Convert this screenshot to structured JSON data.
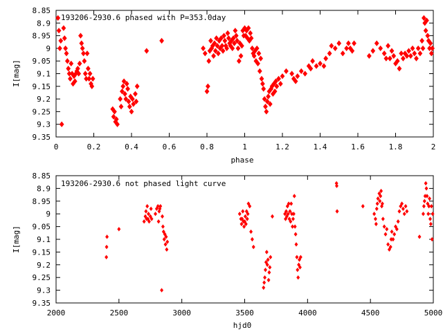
{
  "chart_data": [
    {
      "type": "scatter",
      "title": "193206-2930.6 phased with P=353.0day",
      "xlabel": "phase",
      "ylabel": "I[mag]",
      "xlim": [
        0,
        2
      ],
      "ylim": [
        8.85,
        9.35
      ],
      "y_inverted": true,
      "grid": false,
      "marker_color": "#ff0000",
      "xticks": [
        "0",
        "0.2",
        "0.4",
        "0.6",
        "0.8",
        "1",
        "1.2",
        "1.4",
        "1.6",
        "1.8",
        "2"
      ],
      "yticks": [
        "8.85",
        "8.9",
        "8.95",
        "9",
        "9.05",
        "9.1",
        "9.15",
        "9.2",
        "9.25",
        "9.3",
        "9.35"
      ],
      "points": [
        [
          0.01,
          8.88
        ],
        [
          0.015,
          8.93
        ],
        [
          0.02,
          9.0
        ],
        [
          0.025,
          8.97
        ],
        [
          0.03,
          9.3
        ],
        [
          0.04,
          8.92
        ],
        [
          0.045,
          8.96
        ],
        [
          0.05,
          9.0
        ],
        [
          0.055,
          9.02
        ],
        [
          0.06,
          9.05
        ],
        [
          0.065,
          9.08
        ],
        [
          0.07,
          9.1
        ],
        [
          0.075,
          9.12
        ],
        [
          0.08,
          9.06
        ],
        [
          0.085,
          9.1
        ],
        [
          0.09,
          9.14
        ],
        [
          0.095,
          9.11
        ],
        [
          0.1,
          9.13
        ],
        [
          0.105,
          9.1
        ],
        [
          0.11,
          9.09
        ],
        [
          0.115,
          9.08
        ],
        [
          0.12,
          9.1
        ],
        [
          0.125,
          9.06
        ],
        [
          0.13,
          8.95
        ],
        [
          0.135,
          8.98
        ],
        [
          0.14,
          9.0
        ],
        [
          0.145,
          9.02
        ],
        [
          0.15,
          9.05
        ],
        [
          0.155,
          9.1
        ],
        [
          0.16,
          9.12
        ],
        [
          0.165,
          9.02
        ],
        [
          0.17,
          9.08
        ],
        [
          0.175,
          9.12
        ],
        [
          0.18,
          9.1
        ],
        [
          0.185,
          9.14
        ],
        [
          0.19,
          9.15
        ],
        [
          0.195,
          9.12
        ],
        [
          0.3,
          9.24
        ],
        [
          0.305,
          9.27
        ],
        [
          0.31,
          9.25
        ],
        [
          0.315,
          9.29
        ],
        [
          0.32,
          9.28
        ],
        [
          0.325,
          9.3
        ],
        [
          0.34,
          9.2
        ],
        [
          0.345,
          9.23
        ],
        [
          0.35,
          9.17
        ],
        [
          0.355,
          9.15
        ],
        [
          0.36,
          9.13
        ],
        [
          0.365,
          9.18
        ],
        [
          0.37,
          9.2
        ],
        [
          0.375,
          9.14
        ],
        [
          0.38,
          9.16
        ],
        [
          0.385,
          9.21
        ],
        [
          0.39,
          9.23
        ],
        [
          0.395,
          9.19
        ],
        [
          0.4,
          9.25
        ],
        [
          0.405,
          9.2
        ],
        [
          0.41,
          9.22
        ],
        [
          0.42,
          9.18
        ],
        [
          0.425,
          9.21
        ],
        [
          0.43,
          9.15
        ],
        [
          0.48,
          9.01
        ],
        [
          0.56,
          8.97
        ],
        [
          0.78,
          9.0
        ],
        [
          0.79,
          9.02
        ],
        [
          0.8,
          9.17
        ],
        [
          0.805,
          9.15
        ],
        [
          0.81,
          9.05
        ],
        [
          0.815,
          9.01
        ],
        [
          0.82,
          8.97
        ],
        [
          0.825,
          9.0
        ],
        [
          0.83,
          8.99
        ],
        [
          0.835,
          9.03
        ],
        [
          0.84,
          8.98
        ],
        [
          0.845,
          9.01
        ],
        [
          0.85,
          8.96
        ],
        [
          0.855,
          8.99
        ],
        [
          0.86,
          9.02
        ],
        [
          0.865,
          8.97
        ],
        [
          0.87,
          9.0
        ],
        [
          0.875,
          8.96
        ],
        [
          0.88,
          8.99
        ],
        [
          0.885,
          9.01
        ],
        [
          0.89,
          8.95
        ],
        [
          0.895,
          8.97
        ],
        [
          0.9,
          8.99
        ],
        [
          0.905,
          9.0
        ],
        [
          0.91,
          8.94
        ],
        [
          0.915,
          8.96
        ],
        [
          0.92,
          8.98
        ],
        [
          0.925,
          8.99
        ],
        [
          0.93,
          8.97
        ],
        [
          0.935,
          9.0
        ],
        [
          0.94,
          8.96
        ],
        [
          0.945,
          8.98
        ],
        [
          0.95,
          8.93
        ],
        [
          0.955,
          8.95
        ],
        [
          0.96,
          8.97
        ],
        [
          0.965,
          9.0
        ],
        [
          0.97,
          9.05
        ],
        [
          0.975,
          8.98
        ],
        [
          0.98,
          9.03
        ],
        [
          0.985,
          8.99
        ],
        [
          0.99,
          8.93
        ],
        [
          0.995,
          8.95
        ],
        [
          1.0,
          8.92
        ],
        [
          1.005,
          8.95
        ],
        [
          1.01,
          8.93
        ],
        [
          1.015,
          8.96
        ],
        [
          1.02,
          8.92
        ],
        [
          1.025,
          8.97
        ],
        [
          1.03,
          8.94
        ],
        [
          1.035,
          8.96
        ],
        [
          1.04,
          9.0
        ],
        [
          1.045,
          9.02
        ],
        [
          1.05,
          9.03
        ],
        [
          1.055,
          9.01
        ],
        [
          1.06,
          9.05
        ],
        [
          1.065,
          9.0
        ],
        [
          1.07,
          9.06
        ],
        [
          1.075,
          9.02
        ],
        [
          1.08,
          9.09
        ],
        [
          1.085,
          9.04
        ],
        [
          1.09,
          9.12
        ],
        [
          1.095,
          9.14
        ],
        [
          1.1,
          9.16
        ],
        [
          1.105,
          9.2
        ],
        [
          1.11,
          9.23
        ],
        [
          1.115,
          9.25
        ],
        [
          1.12,
          9.21
        ],
        [
          1.125,
          9.19
        ],
        [
          1.13,
          9.17
        ],
        [
          1.135,
          9.22
        ],
        [
          1.14,
          9.16
        ],
        [
          1.145,
          9.15
        ],
        [
          1.15,
          9.18
        ],
        [
          1.155,
          9.14
        ],
        [
          1.16,
          9.17
        ],
        [
          1.165,
          9.13
        ],
        [
          1.17,
          9.15
        ],
        [
          1.18,
          9.12
        ],
        [
          1.19,
          9.14
        ],
        [
          1.2,
          9.11
        ],
        [
          1.22,
          9.09
        ],
        [
          1.25,
          9.1
        ],
        [
          1.26,
          9.12
        ],
        [
          1.27,
          9.13
        ],
        [
          1.28,
          9.11
        ],
        [
          1.3,
          9.09
        ],
        [
          1.32,
          9.1
        ],
        [
          1.34,
          9.07
        ],
        [
          1.35,
          9.08
        ],
        [
          1.36,
          9.05
        ],
        [
          1.38,
          9.07
        ],
        [
          1.4,
          9.06
        ],
        [
          1.42,
          9.07
        ],
        [
          1.43,
          9.04
        ],
        [
          1.45,
          9.02
        ],
        [
          1.46,
          8.99
        ],
        [
          1.48,
          9.0
        ],
        [
          1.5,
          8.98
        ],
        [
          1.52,
          9.02
        ],
        [
          1.54,
          9.0
        ],
        [
          1.55,
          8.98
        ],
        [
          1.56,
          9.0
        ],
        [
          1.57,
          9.01
        ],
        [
          1.58,
          8.98
        ],
        [
          1.66,
          9.03
        ],
        [
          1.68,
          9.01
        ],
        [
          1.7,
          8.98
        ],
        [
          1.72,
          9.0
        ],
        [
          1.74,
          9.02
        ],
        [
          1.75,
          9.04
        ],
        [
          1.76,
          8.99
        ],
        [
          1.77,
          9.04
        ],
        [
          1.78,
          9.01
        ],
        [
          1.79,
          9.03
        ],
        [
          1.8,
          9.06
        ],
        [
          1.81,
          9.05
        ],
        [
          1.82,
          9.08
        ],
        [
          1.83,
          9.02
        ],
        [
          1.84,
          9.04
        ],
        [
          1.85,
          9.02
        ],
        [
          1.86,
          9.03
        ],
        [
          1.87,
          9.01
        ],
        [
          1.88,
          9.03
        ],
        [
          1.89,
          9.0
        ],
        [
          1.9,
          9.02
        ],
        [
          1.91,
          9.04
        ],
        [
          1.92,
          9.0
        ],
        [
          1.93,
          9.02
        ],
        [
          1.94,
          8.97
        ],
        [
          1.945,
          9.0
        ],
        [
          1.95,
          8.88
        ],
        [
          1.955,
          8.9
        ],
        [
          1.96,
          8.93
        ],
        [
          1.965,
          8.89
        ],
        [
          1.97,
          8.95
        ],
        [
          1.975,
          8.97
        ],
        [
          1.98,
          9.0
        ],
        [
          1.985,
          8.98
        ],
        [
          1.99,
          9.02
        ],
        [
          1.995,
          9.0
        ]
      ]
    },
    {
      "type": "scatter",
      "title": "193206-2930.6 not phased light curve",
      "xlabel": "hjd0",
      "ylabel": "I[mag]",
      "xlim": [
        2000,
        5000
      ],
      "ylim": [
        8.85,
        9.35
      ],
      "y_inverted": true,
      "grid": false,
      "marker_color": "#ff0000",
      "xticks": [
        "2000",
        "2500",
        "3000",
        "3500",
        "4000",
        "4500",
        "5000"
      ],
      "yticks": [
        "8.85",
        "8.9",
        "8.95",
        "9",
        "9.05",
        "9.1",
        "9.15",
        "9.2",
        "9.25",
        "9.3",
        "9.35"
      ],
      "points": [
        [
          2400,
          9.17
        ],
        [
          2402,
          9.13
        ],
        [
          2405,
          9.09
        ],
        [
          2500,
          9.06
        ],
        [
          2700,
          9.03
        ],
        [
          2710,
          9.01
        ],
        [
          2715,
          8.99
        ],
        [
          2720,
          9.02
        ],
        [
          2725,
          8.97
        ],
        [
          2730,
          9.02
        ],
        [
          2735,
          9.0
        ],
        [
          2740,
          9.03
        ],
        [
          2750,
          9.01
        ],
        [
          2755,
          8.98
        ],
        [
          2760,
          9.02
        ],
        [
          2790,
          9.0
        ],
        [
          2800,
          8.98
        ],
        [
          2810,
          8.97
        ],
        [
          2815,
          9.03
        ],
        [
          2820,
          8.99
        ],
        [
          2825,
          8.98
        ],
        [
          2830,
          8.97
        ],
        [
          2840,
          9.3
        ],
        [
          2845,
          9.01
        ],
        [
          2850,
          9.05
        ],
        [
          2855,
          9.07
        ],
        [
          2860,
          9.1
        ],
        [
          2865,
          9.08
        ],
        [
          2870,
          9.12
        ],
        [
          2875,
          9.09
        ],
        [
          2880,
          9.14
        ],
        [
          2885,
          9.11
        ],
        [
          3460,
          9.0
        ],
        [
          3470,
          9.02
        ],
        [
          3475,
          9.04
        ],
        [
          3480,
          9.02
        ],
        [
          3485,
          8.99
        ],
        [
          3490,
          9.03
        ],
        [
          3495,
          9.05
        ],
        [
          3500,
          9.03
        ],
        [
          3505,
          9.01
        ],
        [
          3510,
          9.04
        ],
        [
          3515,
          8.99
        ],
        [
          3520,
          9.02
        ],
        [
          3525,
          9.0
        ],
        [
          3530,
          8.96
        ],
        [
          3540,
          8.97
        ],
        [
          3550,
          9.07
        ],
        [
          3560,
          9.1
        ],
        [
          3570,
          9.13
        ],
        [
          3650,
          9.29
        ],
        [
          3655,
          9.27
        ],
        [
          3660,
          9.25
        ],
        [
          3665,
          9.22
        ],
        [
          3670,
          9.19
        ],
        [
          3675,
          9.15
        ],
        [
          3680,
          9.2
        ],
        [
          3685,
          9.18
        ],
        [
          3690,
          9.26
        ],
        [
          3695,
          9.23
        ],
        [
          3700,
          9.21
        ],
        [
          3705,
          9.17
        ],
        [
          3720,
          9.01
        ],
        [
          3820,
          9.0
        ],
        [
          3825,
          9.02
        ],
        [
          3830,
          8.99
        ],
        [
          3835,
          9.01
        ],
        [
          3840,
          8.97
        ],
        [
          3845,
          9.0
        ],
        [
          3850,
          8.96
        ],
        [
          3855,
          9.02
        ],
        [
          3860,
          8.99
        ],
        [
          3865,
          9.03
        ],
        [
          3870,
          8.96
        ],
        [
          3875,
          9.0
        ],
        [
          3880,
          9.05
        ],
        [
          3885,
          9.02
        ],
        [
          3890,
          9.0
        ],
        [
          3895,
          8.93
        ],
        [
          3900,
          9.05
        ],
        [
          3905,
          9.08
        ],
        [
          3910,
          9.12
        ],
        [
          3915,
          9.17
        ],
        [
          3920,
          9.22
        ],
        [
          3925,
          9.25
        ],
        [
          3930,
          9.2
        ],
        [
          3935,
          9.18
        ],
        [
          3940,
          9.21
        ],
        [
          3945,
          9.17
        ],
        [
          4230,
          8.88
        ],
        [
          4232,
          8.89
        ],
        [
          4235,
          8.99
        ],
        [
          4440,
          8.97
        ],
        [
          4530,
          9.0
        ],
        [
          4540,
          9.02
        ],
        [
          4545,
          9.04
        ],
        [
          4550,
          8.98
        ],
        [
          4555,
          8.96
        ],
        [
          4560,
          8.94
        ],
        [
          4570,
          8.92
        ],
        [
          4575,
          8.95
        ],
        [
          4580,
          8.93
        ],
        [
          4585,
          8.91
        ],
        [
          4590,
          8.97
        ],
        [
          4595,
          8.96
        ],
        [
          4600,
          9.02
        ],
        [
          4610,
          9.05
        ],
        [
          4620,
          9.08
        ],
        [
          4630,
          9.06
        ],
        [
          4640,
          9.12
        ],
        [
          4650,
          9.14
        ],
        [
          4660,
          9.13
        ],
        [
          4665,
          9.1
        ],
        [
          4670,
          9.07
        ],
        [
          4680,
          9.1
        ],
        [
          4690,
          9.08
        ],
        [
          4700,
          9.05
        ],
        [
          4710,
          9.06
        ],
        [
          4720,
          9.03
        ],
        [
          4730,
          8.99
        ],
        [
          4740,
          8.97
        ],
        [
          4750,
          8.96
        ],
        [
          4760,
          8.98
        ],
        [
          4770,
          9.0
        ],
        [
          4780,
          8.97
        ],
        [
          4790,
          8.99
        ],
        [
          4890,
          9.09
        ],
        [
          4920,
          9.0
        ],
        [
          4925,
          8.97
        ],
        [
          4930,
          8.95
        ],
        [
          4935,
          8.93
        ],
        [
          4940,
          8.88
        ],
        [
          4945,
          8.9
        ],
        [
          4950,
          8.93
        ],
        [
          4955,
          8.96
        ],
        [
          4960,
          9.0
        ],
        [
          4965,
          8.97
        ],
        [
          4970,
          8.94
        ],
        [
          4975,
          9.02
        ],
        [
          4980,
          9.04
        ],
        [
          4985,
          8.97
        ],
        [
          4990,
          9.1
        ],
        [
          4995,
          9.0
        ]
      ]
    }
  ]
}
